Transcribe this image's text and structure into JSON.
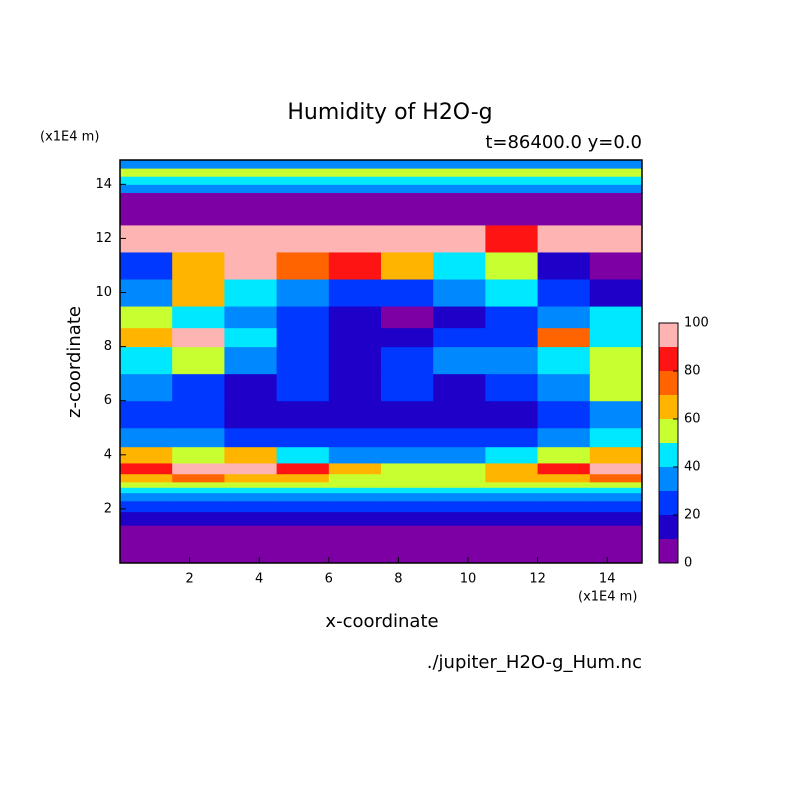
{
  "chart_data": {
    "type": "contour",
    "title": "Humidity of H2O-g",
    "subtitle": "t=86400.0 y=0.0",
    "x_label": "x-coordinate",
    "y_label": "z-coordinate",
    "x_unit": "(x1E4 m)",
    "y_unit": "(x1E4 m)",
    "source": "./jupiter_H2O-g_Hum.nc",
    "xlim": [
      0,
      15
    ],
    "ylim": [
      0,
      14.9
    ],
    "xticks": [
      2,
      4,
      6,
      8,
      10,
      12,
      14
    ],
    "yticks": [
      2,
      4,
      6,
      8,
      10,
      12,
      14
    ],
    "x_edges": [
      0,
      1.5,
      3,
      4.5,
      6,
      7.5,
      9,
      10.5,
      12,
      13.5,
      15
    ],
    "z_edges": [
      0,
      1.4,
      1.9,
      2.3,
      2.6,
      2.8,
      3.0,
      3.3,
      3.7,
      4.3,
      5,
      6,
      7,
      8,
      8.7,
      9.5,
      10.5,
      11.5,
      12.5,
      13.7,
      14.0,
      14.3,
      14.6,
      14.9
    ],
    "values": [
      [
        5,
        5,
        5,
        5,
        5,
        5,
        5,
        5,
        5,
        5
      ],
      [
        15,
        15,
        15,
        15,
        15,
        15,
        15,
        15,
        15,
        15
      ],
      [
        25,
        25,
        25,
        25,
        25,
        25,
        25,
        25,
        25,
        25
      ],
      [
        35,
        35,
        35,
        35,
        35,
        35,
        35,
        35,
        35,
        35
      ],
      [
        45,
        45,
        45,
        45,
        45,
        45,
        45,
        45,
        45,
        45
      ],
      [
        55,
        55,
        55,
        55,
        55,
        55,
        55,
        55,
        55,
        55
      ],
      [
        65,
        75,
        65,
        65,
        55,
        55,
        55,
        65,
        65,
        75
      ],
      [
        85,
        95,
        95,
        85,
        65,
        55,
        55,
        65,
        85,
        95
      ],
      [
        65,
        55,
        65,
        45,
        35,
        35,
        35,
        45,
        55,
        65
      ],
      [
        35,
        35,
        25,
        25,
        25,
        25,
        25,
        25,
        35,
        45
      ],
      [
        25,
        25,
        15,
        15,
        15,
        15,
        15,
        15,
        25,
        35
      ],
      [
        35,
        25,
        15,
        25,
        15,
        25,
        15,
        25,
        35,
        55
      ],
      [
        45,
        55,
        35,
        25,
        15,
        25,
        35,
        35,
        45,
        55
      ],
      [
        65,
        95,
        45,
        25,
        15,
        15,
        25,
        25,
        75,
        45
      ],
      [
        55,
        45,
        35,
        25,
        15,
        5,
        15,
        25,
        35,
        45
      ],
      [
        35,
        65,
        45,
        35,
        25,
        25,
        35,
        45,
        25,
        15
      ],
      [
        25,
        65,
        95,
        75,
        85,
        65,
        45,
        55,
        15,
        5
      ],
      [
        95,
        95,
        95,
        95,
        95,
        95,
        95,
        85,
        95,
        95
      ],
      [
        5,
        5,
        5,
        5,
        5,
        5,
        5,
        5,
        5,
        5
      ],
      [
        35,
        35,
        35,
        35,
        35,
        35,
        35,
        35,
        35,
        35
      ],
      [
        45,
        45,
        45,
        45,
        45,
        45,
        45,
        45,
        45,
        45
      ],
      [
        55,
        55,
        55,
        55,
        55,
        55,
        55,
        55,
        55,
        55
      ],
      [
        35,
        35,
        35,
        35,
        35,
        35,
        35,
        35,
        35,
        35
      ]
    ],
    "levels": [
      0,
      10,
      20,
      30,
      40,
      50,
      60,
      70,
      80,
      90,
      100
    ],
    "colors": [
      "#7d00a5",
      "#1e00c8",
      "#0038ff",
      "#0088ff",
      "#00e8ff",
      "#c8ff30",
      "#ffb400",
      "#ff6400",
      "#ff1414",
      "#ffb4b4"
    ],
    "colorbar_ticks": [
      0,
      20,
      40,
      60,
      80,
      100
    ]
  }
}
